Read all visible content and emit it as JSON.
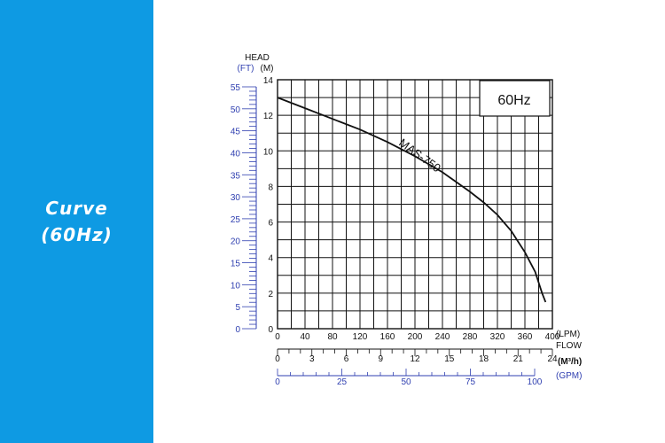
{
  "sidebar": {
    "background": "#0e9ae3",
    "title_line1": "Curve",
    "title_line2": "(60Hz)"
  },
  "colors": {
    "grid": "#111111",
    "curve": "#111111",
    "ft_axis": "#2f3fb0",
    "gpm_axis": "#2f3fb0"
  },
  "chart_data": {
    "type": "line",
    "badge": "60Hz",
    "series": [
      {
        "name": "MAS-750",
        "points": [
          [
            0,
            13
          ],
          [
            40,
            12.4
          ],
          [
            80,
            11.8
          ],
          [
            120,
            11.2
          ],
          [
            160,
            10.5
          ],
          [
            200,
            9.7
          ],
          [
            240,
            8.8
          ],
          [
            280,
            7.7
          ],
          [
            300,
            7.1
          ],
          [
            320,
            6.4
          ],
          [
            340,
            5.5
          ],
          [
            360,
            4.3
          ],
          [
            375,
            3.2
          ],
          [
            385,
            2.0
          ],
          [
            390,
            1.5
          ]
        ]
      }
    ],
    "x_axis": {
      "unit": "(LPM)",
      "name": "FLOW",
      "range": [
        0,
        400
      ],
      "ticks": [
        0,
        40,
        80,
        120,
        160,
        200,
        240,
        280,
        320,
        360,
        400
      ]
    },
    "y_axis": {
      "title": "HEAD",
      "unit": "(M)",
      "range": [
        0,
        14
      ],
      "ticks": [
        0,
        2,
        4,
        6,
        8,
        10,
        12,
        14
      ]
    },
    "ft_axis": {
      "unit": "(FT)",
      "range": [
        0,
        55
      ],
      "ticks": [
        0,
        5,
        10,
        15,
        20,
        25,
        30,
        35,
        40,
        45,
        50,
        55
      ]
    },
    "m3h_axis": {
      "unit": "(M³/h)",
      "range": [
        0,
        24
      ],
      "ticks": [
        0,
        3,
        6,
        9,
        12,
        15,
        18,
        21,
        24
      ]
    },
    "gpm_axis": {
      "unit": "(GPM)",
      "range": [
        0,
        100
      ],
      "ticks": [
        0,
        25,
        50,
        75,
        100
      ]
    },
    "grid": true
  }
}
